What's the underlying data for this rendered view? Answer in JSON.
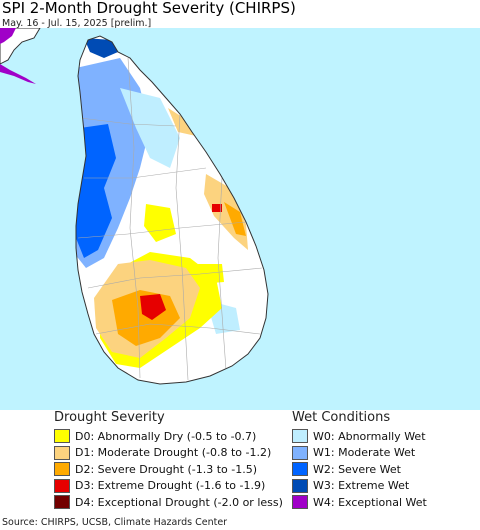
{
  "header": {
    "title": "SPI 2-Month Drought Severity (CHIRPS)",
    "subtitle": "May. 16 - Jul. 15, 2025 [prelim.]"
  },
  "colors": {
    "ocean": "#bff3ff",
    "land": "#ffffff",
    "border": "#333333",
    "district_lines": "#aaaaaa"
  },
  "legend": {
    "drought": {
      "heading": "Drought Severity",
      "items": [
        {
          "label": "D0: Abnormally Dry (-0.5 to -0.7)",
          "color": "#ffff00"
        },
        {
          "label": "D1: Moderate Drought (-0.8 to -1.2)",
          "color": "#fcd37f"
        },
        {
          "label": "D2: Severe Drought (-1.3 to -1.5)",
          "color": "#ffaa00"
        },
        {
          "label": "D3: Extreme Drought (-1.6 to -1.9)",
          "color": "#e60000"
        },
        {
          "label": "D4: Exceptional Drought (-2.0 or less)",
          "color": "#730000"
        }
      ]
    },
    "wet": {
      "heading": "Wet Conditions",
      "items": [
        {
          "label": "W0: Abnormally Wet",
          "color": "#bfeeff"
        },
        {
          "label": "W1: Moderate Wet",
          "color": "#7fb2ff"
        },
        {
          "label": "W2: Severe Wet",
          "color": "#0064ff"
        },
        {
          "label": "W3: Extreme Wet",
          "color": "#004bb4"
        },
        {
          "label": "W4: Exceptional Wet",
          "color": "#a000c8"
        }
      ]
    }
  },
  "footer": {
    "credit": "Source: CHIRPS, UCSB, Climate Hazards Center"
  }
}
